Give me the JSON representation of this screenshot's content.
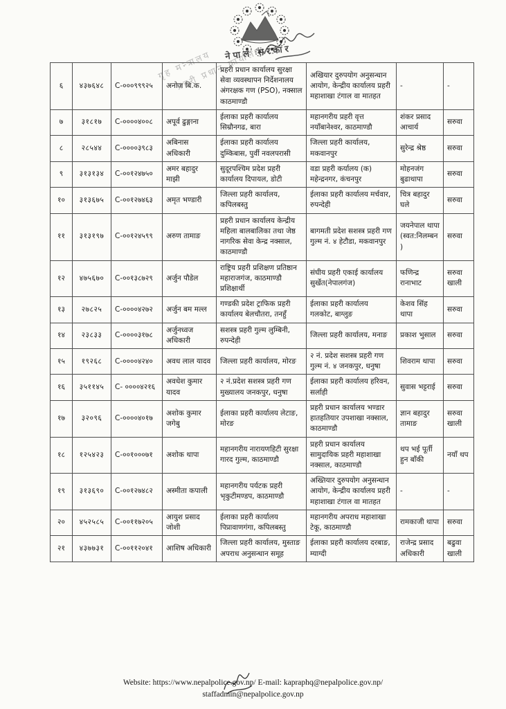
{
  "page": {
    "emblem_caption": "नेपाल सरकार",
    "stamp": {
      "line1": "गृह मन्त्रालय",
      "line2": "प्रहरी प्रधान कार्यालय"
    }
  },
  "table": {
    "rows": [
      {
        "sn": "६",
        "num": "४३७६४८",
        "cno": "C-०००९९९२५",
        "name": "अनोज बि.क.",
        "from_office": "प्रहरी प्रधान कार्यालय सुरक्षा सेवा व्यवस्थापन निर्देशनालय अंगरक्षक गण (PSO), नक्साल काठमाण्डौ",
        "to_office": "अखियार दुरुपयोग अनुसन्धान आयोग, केन्द्रीय कार्यालय प्रहरी महाशाखा टंगाल वा मातहत",
        "recommender": "-",
        "status": "-"
      },
      {
        "sn": "७",
        "num": "३१८१७",
        "cno": "C-००००४००८",
        "name": "अपूर्व ढुङ्गाना",
        "from_office": "ईलाका प्रहरी कार्यालय सिम्रौनगढ, बारा",
        "to_office": "महानगरीय प्रहरी वृत्त नयाँबानेश्वर, काठमाण्डौ",
        "recommender": "शंकर प्रसाद आचार्य",
        "status": "सरुवा"
      },
      {
        "sn": "८",
        "num": "२८५४४",
        "cno": "C-००००३९८३",
        "name": "अबिनास अधिकारी",
        "from_office": "ईलाका प्रहरी कार्यालय दुम्किबास, पुर्वी नवलपरासी",
        "to_office": "जिल्ला प्रहरी कार्यालय, मकवानपुर",
        "recommender": "सुरेन्द्र श्रेष्ठ",
        "status": "सरुवा"
      },
      {
        "sn": "९",
        "num": "३१३१३४",
        "cno": "C-००१२४७५०",
        "name": "अमर बहादुर माझी",
        "from_office": "सुदूरपश्चिम प्रदेश प्रहरी कार्यालय दिपायल, डोटी",
        "to_office": "वडा प्रहरी कर्यालय (क) महेन्द्रनगर, कंचनपुर",
        "recommender": "मोहनजंग बुढाथापा",
        "status": "सरुवा"
      },
      {
        "sn": "१०",
        "num": "३१३६७५",
        "cno": "C-००१२७४६३",
        "name": "अमृत भण्डारी",
        "from_office": "जिल्ला प्रहरी कार्यालय, कपिलबस्तु",
        "to_office": "ईलाका प्रहरी कार्यालय मर्चवार, रुपन्देही",
        "recommender": "चित्र बहादुर घले",
        "status": "सरुवा"
      },
      {
        "sn": "११",
        "num": "३१३१९७",
        "cno": "C-००१२४५९९",
        "name": "अरुण तामाङ",
        "from_office": "प्रहरी प्रधान कार्यालय केन्द्रीय महिला बालबालिका तथा जेष्ठ  नागरिक सेवा केन्द्र नक्साल, काठमाण्डौ",
        "to_office": "बागमती प्रदेश सशस्त्र प्रहरी गण गुल्म नं. ४ हेटौडा, मकवानपुर",
        "recommender": "जयनेपाल थापा (स्वत:निलम्बन)",
        "status": "सरुवा"
      },
      {
        "sn": "१२",
        "num": "४७५६७०",
        "cno": "C-००१३८७२९",
        "name": "अर्जुन पौडेल",
        "from_office": "राष्ट्रिय प्रहरी प्रशिक्षण प्रतिष्ठान महाराजगंज, काठमाण्डौ प्रशिक्षार्थी",
        "to_office": "संघीय प्रहरी एकाई कार्यालय सुर्खेत(नेपालगंज)",
        "recommender": "फणिन्द्र रानाभाट",
        "status": "सरुवा खाली"
      },
      {
        "sn": "१३",
        "num": "२७८२५",
        "cno": "C-००००४२७२",
        "name": "अर्जुन बम मल्ल",
        "from_office": "गण्डकी प्रदेश ट्राफिक प्रहरी कार्यालय बेलचौतरा, तनहुँ",
        "to_office": "ईलाका प्रहरी कार्यालय गलकोट, बाग्लुङ",
        "recommender": "केशव सिंह थापा",
        "status": "सरुवा"
      },
      {
        "sn": "१४",
        "num": "२३८३३",
        "cno": "C-००००३१७८",
        "name": "अर्जुनध्वज अधिकारी",
        "from_office": "सशस्त्र प्रहरी गुल्म लुम्बिनी, रुपन्देही",
        "to_office": "जिल्ला प्रहरी कार्यालय, मनाङ",
        "recommender": "प्रकाश भुसाल",
        "status": "सरुवा"
      },
      {
        "sn": "१५",
        "num": "१९२६८",
        "cno": "C-००००४२४०",
        "name": "अवध लाल यादव",
        "from_office": "जिल्ला प्रहरी कार्यालय, मोरङ",
        "to_office": "२ नं. प्रदेश सशस्त्र प्रहरी गण गुल्म नं. ४ जनकपुर, धनुषा",
        "recommender": "शिवराम थापा",
        "status": "सरुवा"
      },
      {
        "sn": "१६",
        "num": "३५११४५",
        "cno": "C- ००००४२१६",
        "name": "अवधेश कुमार यादव",
        "from_office": "२ नं.प्रदेश सशस्त्र प्रहरी गण मुख्यालय जनकपुर, धनुषा",
        "to_office": "ईलाका प्रहरी कार्यालय हरिवन, सर्लाही",
        "recommender": "सुवास भट्टराई",
        "status": "सरुवा"
      },
      {
        "sn": "१७",
        "num": "३२०९६",
        "cno": "C-००००४०१७",
        "name": "अशोक कुमार जगेबु",
        "from_office": "ईलाका प्रहरी कार्यालय लेटाङ, मोरङ",
        "to_office": "प्रहरी प्रधान कार्यालय भण्डार हातहतियार उपशाखा नक्साल, काठमाण्डौ",
        "recommender": "ज्ञान बहादुर तामाङ",
        "status": "सरुवा खाली"
      },
      {
        "sn": "१८",
        "num": "१२५४२३",
        "cno": "C-००१०००७१",
        "name": "अशोक थापा",
        "from_office": "महानगरीय नारायणहिटी सुरक्षा गारद गुल्म, काठमाण्डौ",
        "to_office": "प्रहरी प्रधान कार्यालय सामुदायिक प्रहरी महाशाखा नक्साल, काठमाण्डौ",
        "recommender": "थप भई पूर्ती हुन बाँकी",
        "status": "नयाँ थप"
      },
      {
        "sn": "१९",
        "num": "३१३६९०",
        "cno": "C-००१२७४८२",
        "name": "अस्मीता कपाली",
        "from_office": "महानगरीय पर्यटक प्रहरी भृकुटीमण्डप, काठमाण्डौ",
        "to_office": "अख्तियार दुरुपयोग अनुसन्धान आयोग, केन्द्रीय कार्यालय प्रहरी महाशाखा टंगाल वा मातहत",
        "recommender": "-",
        "status": "-"
      },
      {
        "sn": "२०",
        "num": "४५२५८५",
        "cno": "C-००११७२०५",
        "name": "आयुश प्रसाद जोशी",
        "from_office": "ईलाका प्रहरी कार्यालय पिप्रावाणगंगा, कपिलबस्तु",
        "to_office": "महानगरीय अपराध महाशाखा टेकू, काठमाण्डौ",
        "recommender": "रामकाजी थापा",
        "status": "सरुवा"
      },
      {
        "sn": "२१",
        "num": "४३७७३१",
        "cno": "C-००११२०४१",
        "name": "आशिष अधिकारी",
        "from_office": "जिल्ला प्रहरी कार्यालय, मुस्ताङ अपराध अनुसन्धान समूह",
        "to_office": "ईलाका प्रहरी कार्यालय दरबाङ, म्याग्दी",
        "recommender": "राजेन्द्र प्रसाद अधिकारी",
        "status": "बढुवा खाली"
      }
    ]
  },
  "footer": {
    "line1": "Website: https://www.nepalpolice.gov.np/ E-mail: kapraphq@nepalpolice.gov.np/",
    "line2": "staffadmin@nepalpolice.gov.np"
  },
  "colors": {
    "paper": "#fbfbf8",
    "ink": "#1b1b1b",
    "table_border": "#4c4c4c",
    "stamp_gray": "#8a8a8a"
  }
}
